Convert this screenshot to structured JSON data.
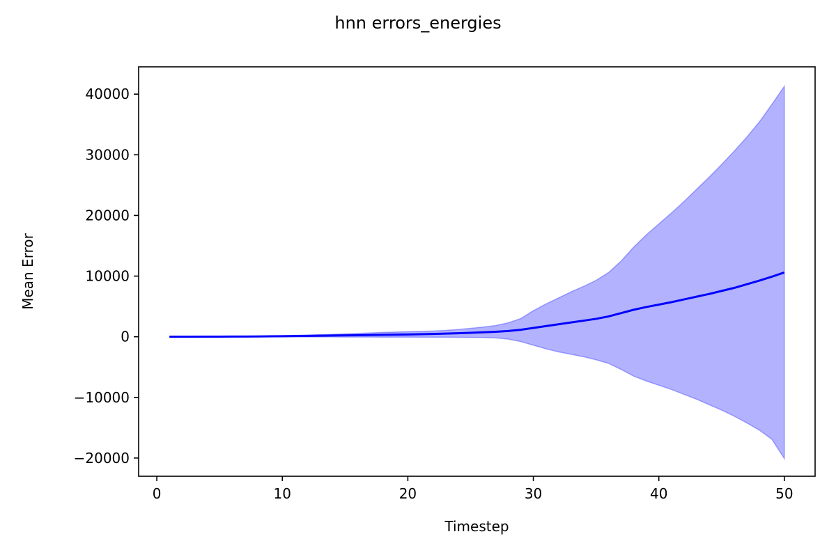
{
  "chart_data": {
    "type": "line",
    "title": "hnn errors_energies",
    "xlabel": "Timestep",
    "ylabel": "Mean Error",
    "xlim": [
      -1.45,
      52.45
    ],
    "ylim": [
      -23000,
      44500
    ],
    "xticks": [
      0,
      10,
      20,
      30,
      40,
      50
    ],
    "yticks": [
      -20000,
      -10000,
      0,
      10000,
      20000,
      30000,
      40000
    ],
    "ytick_labels": [
      "−20000",
      "−10000",
      "0",
      "10000",
      "20000",
      "30000",
      "40000"
    ],
    "grid": false,
    "colors": {
      "line": "#0000ff",
      "band_fill": "#0000ff",
      "band_opacity": 0.3
    },
    "series": [
      {
        "name": "",
        "type": "line",
        "x": [
          1,
          2,
          3,
          4,
          5,
          6,
          7,
          8,
          9,
          10,
          11,
          12,
          13,
          14,
          15,
          16,
          17,
          18,
          19,
          20,
          21,
          22,
          23,
          24,
          25,
          26,
          27,
          28,
          29,
          30,
          31,
          32,
          33,
          34,
          35,
          36,
          37,
          38,
          39,
          40,
          41,
          42,
          43,
          44,
          45,
          46,
          47,
          48,
          49,
          50
        ],
        "y": [
          0,
          2,
          5,
          10,
          15,
          25,
          35,
          50,
          70,
          90,
          115,
          140,
          170,
          200,
          230,
          260,
          290,
          320,
          350,
          380,
          420,
          460,
          520,
          580,
          650,
          730,
          820,
          950,
          1150,
          1450,
          1750,
          2050,
          2350,
          2650,
          2950,
          3350,
          3900,
          4450,
          4900,
          5300,
          5700,
          6150,
          6600,
          7050,
          7550,
          8050,
          8650,
          9250,
          9900,
          10600
        ]
      },
      {
        "name": "",
        "type": "band",
        "x": [
          1,
          2,
          3,
          4,
          5,
          6,
          7,
          8,
          9,
          10,
          11,
          12,
          13,
          14,
          15,
          16,
          17,
          18,
          19,
          20,
          21,
          22,
          23,
          24,
          25,
          26,
          27,
          28,
          29,
          30,
          31,
          32,
          33,
          34,
          35,
          36,
          37,
          38,
          39,
          40,
          41,
          42,
          43,
          44,
          45,
          46,
          47,
          48,
          49,
          50
        ],
        "upper": [
          0,
          5,
          10,
          20,
          30,
          50,
          70,
          100,
          140,
          180,
          230,
          280,
          340,
          400,
          470,
          550,
          640,
          720,
          780,
          830,
          880,
          950,
          1050,
          1200,
          1400,
          1600,
          1850,
          2300,
          3000,
          4300,
          5400,
          6400,
          7400,
          8300,
          9300,
          10600,
          12500,
          14800,
          16800,
          18600,
          20400,
          22300,
          24300,
          26300,
          28400,
          30600,
          32900,
          35400,
          38300,
          41300
        ],
        "lower": [
          0,
          -1,
          -2,
          -3,
          -5,
          -8,
          -10,
          -15,
          -20,
          -25,
          -30,
          -35,
          -40,
          -45,
          -50,
          -55,
          -60,
          -65,
          -70,
          -75,
          -80,
          -85,
          -90,
          -100,
          -110,
          -130,
          -200,
          -400,
          -800,
          -1400,
          -2000,
          -2500,
          -2900,
          -3300,
          -3800,
          -4400,
          -5400,
          -6500,
          -7300,
          -8000,
          -8700,
          -9500,
          -10300,
          -11200,
          -12100,
          -13100,
          -14200,
          -15400,
          -16900,
          -20100
        ]
      }
    ]
  }
}
